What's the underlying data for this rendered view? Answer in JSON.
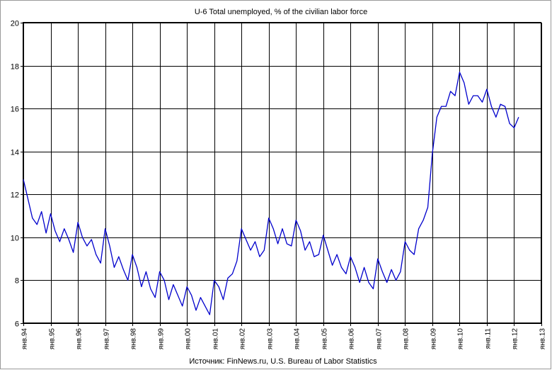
{
  "chart_data": {
    "type": "line",
    "title": "U-6 Total unemployed, % of the civilian labor force",
    "source": "Источник: FinNews.ru, U.S. Bureau of Labor Statistics",
    "xlabel": "",
    "ylabel": "",
    "ylim": [
      6,
      20
    ],
    "yticks": [
      "6",
      "8",
      "10",
      "12",
      "14",
      "16",
      "18",
      "20"
    ],
    "xlim": [
      "1994-01",
      "2013-01"
    ],
    "xticks": [
      "янв.94",
      "янв.95",
      "янв.96",
      "янв.97",
      "янв.98",
      "янв.99",
      "янв.00",
      "янв.01",
      "янв.02",
      "янв.03",
      "янв.04",
      "янв.05",
      "янв.06",
      "янв.07",
      "янв.08",
      "янв.09",
      "янв.10",
      "янв.11",
      "янв.12",
      "янв.13"
    ],
    "grid": true,
    "legend": "none",
    "series": [
      {
        "color": "#0000cc",
        "x": [
          "1994-01",
          "1994-03",
          "1994-05",
          "1994-07",
          "1994-09",
          "1994-11",
          "1995-01",
          "1995-03",
          "1995-05",
          "1995-07",
          "1995-09",
          "1995-11",
          "1996-01",
          "1996-03",
          "1996-05",
          "1996-07",
          "1996-09",
          "1996-11",
          "1997-01",
          "1997-03",
          "1997-05",
          "1997-07",
          "1997-09",
          "1997-11",
          "1998-01",
          "1998-03",
          "1998-05",
          "1998-07",
          "1998-09",
          "1998-11",
          "1999-01",
          "1999-03",
          "1999-05",
          "1999-07",
          "1999-09",
          "1999-11",
          "2000-01",
          "2000-03",
          "2000-05",
          "2000-07",
          "2000-09",
          "2000-11",
          "2001-01",
          "2001-03",
          "2001-05",
          "2001-07",
          "2001-09",
          "2001-11",
          "2002-01",
          "2002-03",
          "2002-05",
          "2002-07",
          "2002-09",
          "2002-11",
          "2003-01",
          "2003-03",
          "2003-05",
          "2003-07",
          "2003-09",
          "2003-11",
          "2004-01",
          "2004-03",
          "2004-05",
          "2004-07",
          "2004-09",
          "2004-11",
          "2005-01",
          "2005-03",
          "2005-05",
          "2005-07",
          "2005-09",
          "2005-11",
          "2006-01",
          "2006-03",
          "2006-05",
          "2006-07",
          "2006-09",
          "2006-11",
          "2007-01",
          "2007-03",
          "2007-05",
          "2007-07",
          "2007-09",
          "2007-11",
          "2008-01",
          "2008-03",
          "2008-05",
          "2008-07",
          "2008-09",
          "2008-11",
          "2009-01",
          "2009-03",
          "2009-05",
          "2009-07",
          "2009-09",
          "2009-11",
          "2010-01",
          "2010-03",
          "2010-05",
          "2010-07",
          "2010-09",
          "2010-11",
          "2011-01",
          "2011-03",
          "2011-05",
          "2011-07",
          "2011-09",
          "2011-11",
          "2012-01",
          "2012-03"
        ],
        "values": [
          12.7,
          11.8,
          10.9,
          10.6,
          11.2,
          10.2,
          11.1,
          10.3,
          9.8,
          10.4,
          9.9,
          9.3,
          10.7,
          10.0,
          9.6,
          9.9,
          9.2,
          8.8,
          10.4,
          9.6,
          8.6,
          9.1,
          8.5,
          8.0,
          9.2,
          8.6,
          7.7,
          8.4,
          7.6,
          7.2,
          8.4,
          8.0,
          7.1,
          7.8,
          7.3,
          6.8,
          7.7,
          7.3,
          6.6,
          7.2,
          6.8,
          6.4,
          8.0,
          7.7,
          7.1,
          8.1,
          8.3,
          8.9,
          10.4,
          9.9,
          9.4,
          9.8,
          9.1,
          9.4,
          10.9,
          10.4,
          9.7,
          10.4,
          9.7,
          9.6,
          10.8,
          10.3,
          9.4,
          9.8,
          9.1,
          9.2,
          10.1,
          9.4,
          8.7,
          9.2,
          8.6,
          8.3,
          9.1,
          8.6,
          7.9,
          8.6,
          7.9,
          7.6,
          9.0,
          8.4,
          7.9,
          8.5,
          8.0,
          8.4,
          9.8,
          9.4,
          9.2,
          10.4,
          10.8,
          11.4,
          13.9,
          15.6,
          16.1,
          16.1,
          16.8,
          16.6,
          17.7,
          17.2,
          16.2,
          16.6,
          16.6,
          16.3,
          16.9,
          16.1,
          15.6,
          16.2,
          16.1,
          15.3,
          15.1,
          15.6
        ]
      }
    ]
  }
}
